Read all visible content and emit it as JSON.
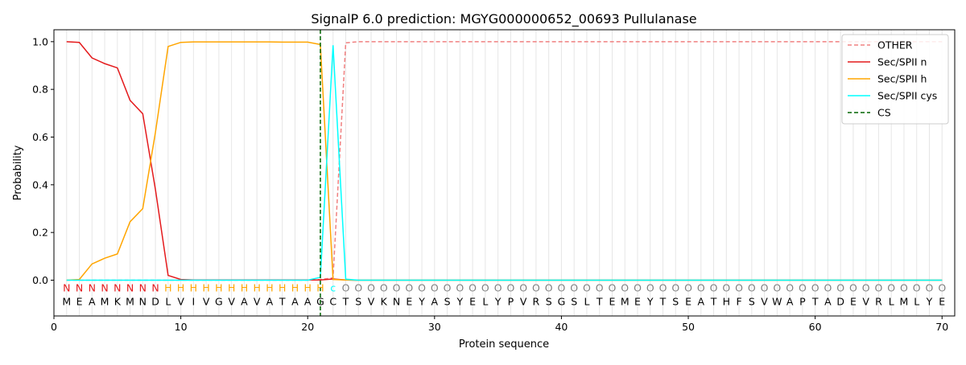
{
  "chart_data": {
    "type": "line",
    "title": "SignalP 6.0 prediction: MGYG000000652_00693 Pullulanase",
    "xlabel": "Protein sequence",
    "ylabel": "Probability",
    "xlim": [
      0,
      71
    ],
    "ylim": [
      -0.15,
      1.05
    ],
    "xticks": [
      0,
      10,
      20,
      30,
      40,
      50,
      60,
      70
    ],
    "yticks": [
      0.0,
      0.2,
      0.4,
      0.6,
      0.8,
      1.0
    ],
    "grid": "vertical lines at each residue",
    "legend_position": "top-right",
    "sequence": [
      "M",
      "E",
      "A",
      "M",
      "K",
      "M",
      "N",
      "D",
      "L",
      "V",
      "I",
      "V",
      "G",
      "V",
      "A",
      "V",
      "A",
      "T",
      "A",
      "A",
      "G",
      "C",
      "T",
      "S",
      "V",
      "K",
      "N",
      "E",
      "Y",
      "A",
      "S",
      "Y",
      "E",
      "L",
      "Y",
      "P",
      "V",
      "R",
      "S",
      "G",
      "S",
      "L",
      "T",
      "E",
      "M",
      "E",
      "Y",
      "T",
      "S",
      "E",
      "A",
      "T",
      "H",
      "F",
      "S",
      "V",
      "W",
      "A",
      "P",
      "T",
      "A",
      "D",
      "E",
      "V",
      "R",
      "L",
      "M",
      "L",
      "Y",
      "E"
    ],
    "labels": [
      "N",
      "N",
      "N",
      "N",
      "N",
      "N",
      "N",
      "N",
      "H",
      "H",
      "H",
      "H",
      "H",
      "H",
      "H",
      "H",
      "H",
      "H",
      "H",
      "H",
      "H",
      "c",
      "O",
      "O",
      "O",
      "O",
      "O",
      "O",
      "O",
      "O",
      "O",
      "O",
      "O",
      "O",
      "O",
      "O",
      "O",
      "O",
      "O",
      "O",
      "O",
      "O",
      "O",
      "O",
      "O",
      "O",
      "O",
      "O",
      "O",
      "O",
      "O",
      "O",
      "O",
      "O",
      "O",
      "O",
      "O",
      "O",
      "O",
      "O",
      "O",
      "O",
      "O",
      "O",
      "O",
      "O",
      "O",
      "O",
      "O",
      "O"
    ],
    "label_colors": {
      "N": "#e41a1c",
      "H": "#ffa500",
      "c": "#00ffff",
      "O": "#808080"
    },
    "series": [
      {
        "name": "OTHER",
        "color": "#f08080",
        "dash": true,
        "values": [
          0,
          0,
          0,
          0,
          0,
          0,
          0,
          0,
          0,
          0,
          0,
          0,
          0,
          0,
          0,
          0,
          0,
          0,
          0,
          0,
          0.003,
          0.01,
          0.995,
          1,
          1,
          1,
          1,
          1,
          1,
          1,
          1,
          1,
          1,
          1,
          1,
          1,
          1,
          1,
          1,
          1,
          1,
          1,
          1,
          1,
          1,
          1,
          1,
          1,
          1,
          1,
          1,
          1,
          1,
          1,
          1,
          1,
          1,
          1,
          1,
          1,
          1,
          1,
          1,
          1,
          1,
          1,
          1,
          1,
          1,
          1
        ]
      },
      {
        "name": "Sec/SPII n",
        "color": "#e41a1c",
        "dash": false,
        "values": [
          1.0,
          0.997,
          0.932,
          0.908,
          0.89,
          0.754,
          0.698,
          0.38,
          0.02,
          0.003,
          0.001,
          0.001,
          0.001,
          0.001,
          0.001,
          0.001,
          0.001,
          0.001,
          0.001,
          0.001,
          0.001,
          0.005,
          0.001,
          0,
          0,
          0,
          0,
          0,
          0,
          0,
          0,
          0,
          0,
          0,
          0,
          0,
          0,
          0,
          0,
          0,
          0,
          0,
          0,
          0,
          0,
          0,
          0,
          0,
          0,
          0,
          0,
          0,
          0,
          0,
          0,
          0,
          0,
          0,
          0,
          0,
          0,
          0,
          0,
          0,
          0,
          0,
          0,
          0,
          0,
          0
        ]
      },
      {
        "name": "Sec/SPII h",
        "color": "#ffa500",
        "dash": false,
        "values": [
          0,
          0.003,
          0.068,
          0.092,
          0.11,
          0.245,
          0.3,
          0.62,
          0.98,
          0.997,
          0.999,
          0.999,
          0.999,
          0.999,
          0.999,
          0.999,
          0.999,
          0.998,
          0.998,
          0.998,
          0.988,
          0.003,
          0.001,
          0,
          0,
          0,
          0,
          0,
          0,
          0,
          0,
          0,
          0,
          0,
          0,
          0,
          0,
          0,
          0,
          0,
          0,
          0,
          0,
          0,
          0,
          0,
          0,
          0,
          0,
          0,
          0,
          0,
          0,
          0,
          0,
          0,
          0,
          0,
          0,
          0,
          0,
          0,
          0,
          0,
          0,
          0,
          0,
          0,
          0,
          0
        ]
      },
      {
        "name": "Sec/SPII cys",
        "color": "#00ffff",
        "dash": false,
        "values": [
          0,
          0,
          0,
          0,
          0,
          0,
          0,
          0,
          0,
          0,
          0,
          0,
          0,
          0,
          0,
          0,
          0,
          0,
          0,
          0,
          0.012,
          0.985,
          0.004,
          0,
          0,
          0,
          0,
          0,
          0,
          0,
          0,
          0,
          0,
          0,
          0,
          0,
          0,
          0,
          0,
          0,
          0,
          0,
          0,
          0,
          0,
          0,
          0,
          0,
          0,
          0,
          0,
          0,
          0,
          0,
          0,
          0,
          0,
          0,
          0,
          0,
          0,
          0,
          0,
          0,
          0,
          0,
          0,
          0,
          0,
          0
        ]
      }
    ],
    "cs": {
      "name": "CS",
      "x": 21,
      "color": "#006400"
    }
  }
}
